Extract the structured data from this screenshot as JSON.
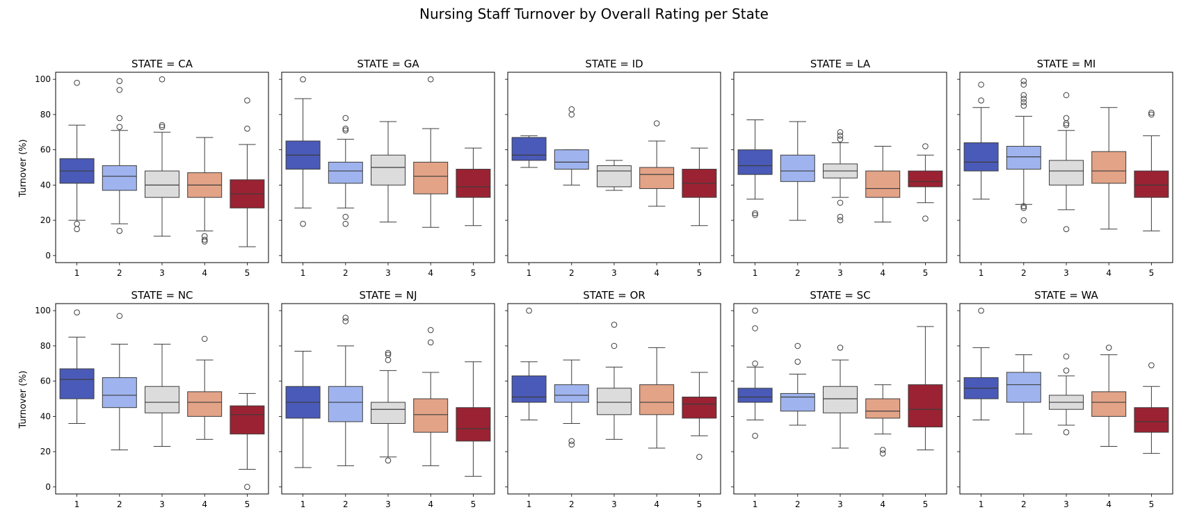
{
  "title": "Nursing Staff Turnover by Overall Rating per State",
  "ylabel": "Turnover (%)",
  "colors": [
    "#4a5ab8",
    "#9fb4ef",
    "#dcdcdc",
    "#e3a387",
    "#9b2232"
  ],
  "chart_data": {
    "type": "box",
    "categories": [
      "1",
      "2",
      "3",
      "4",
      "5"
    ],
    "ylim": [
      -4,
      104
    ],
    "yticks": [
      0,
      20,
      40,
      60,
      80,
      100
    ],
    "grid": false,
    "panels": [
      {
        "title": "STATE = CA",
        "boxes": [
          {
            "whislo": 20,
            "q1": 41,
            "med": 48,
            "q3": 55,
            "whishi": 74,
            "fliers": [
              98,
              18,
              15
            ]
          },
          {
            "whislo": 18,
            "q1": 37,
            "med": 45,
            "q3": 51,
            "whishi": 71,
            "fliers": [
              99,
              94,
              78,
              73,
              14
            ]
          },
          {
            "whislo": 11,
            "q1": 33,
            "med": 40,
            "q3": 48,
            "whishi": 70,
            "fliers": [
              100,
              74,
              73
            ]
          },
          {
            "whislo": 14,
            "q1": 33,
            "med": 40,
            "q3": 47,
            "whishi": 67,
            "fliers": [
              11,
              9,
              8
            ]
          },
          {
            "whislo": 5,
            "q1": 27,
            "med": 35,
            "q3": 43,
            "whishi": 63,
            "fliers": [
              88,
              72
            ]
          }
        ]
      },
      {
        "title": "STATE = GA",
        "boxes": [
          {
            "whislo": 27,
            "q1": 49,
            "med": 57,
            "q3": 65,
            "whishi": 89,
            "fliers": [
              100,
              18
            ]
          },
          {
            "whislo": 27,
            "q1": 41,
            "med": 48,
            "q3": 53,
            "whishi": 66,
            "fliers": [
              78,
              72,
              71,
              22,
              18
            ]
          },
          {
            "whislo": 19,
            "q1": 40,
            "med": 50,
            "q3": 57,
            "whishi": 76,
            "fliers": []
          },
          {
            "whislo": 16,
            "q1": 35,
            "med": 45,
            "q3": 53,
            "whishi": 72,
            "fliers": [
              100
            ]
          },
          {
            "whislo": 17,
            "q1": 33,
            "med": 39,
            "q3": 49,
            "whishi": 61,
            "fliers": []
          }
        ]
      },
      {
        "title": "STATE = ID",
        "boxes": [
          {
            "whislo": 50,
            "q1": 54,
            "med": 57,
            "q3": 67,
            "whishi": 68,
            "fliers": []
          },
          {
            "whislo": 40,
            "q1": 49,
            "med": 53,
            "q3": 60,
            "whishi": 60,
            "fliers": [
              83,
              80
            ]
          },
          {
            "whislo": 37,
            "q1": 39,
            "med": 48,
            "q3": 51,
            "whishi": 54,
            "fliers": []
          },
          {
            "whislo": 28,
            "q1": 38,
            "med": 46,
            "q3": 50,
            "whishi": 65,
            "fliers": [
              75
            ]
          },
          {
            "whislo": 17,
            "q1": 33,
            "med": 41,
            "q3": 49,
            "whishi": 61,
            "fliers": []
          }
        ]
      },
      {
        "title": "STATE = LA",
        "boxes": [
          {
            "whislo": 32,
            "q1": 46,
            "med": 51,
            "q3": 60,
            "whishi": 77,
            "fliers": [
              24,
              23
            ]
          },
          {
            "whislo": 20,
            "q1": 42,
            "med": 48,
            "q3": 57,
            "whishi": 76,
            "fliers": []
          },
          {
            "whislo": 33,
            "q1": 44,
            "med": 48,
            "q3": 52,
            "whishi": 64,
            "fliers": [
              70,
              68,
              66,
              30,
              22,
              20
            ]
          },
          {
            "whislo": 19,
            "q1": 33,
            "med": 38,
            "q3": 48,
            "whishi": 62,
            "fliers": []
          },
          {
            "whislo": 30,
            "q1": 39,
            "med": 42,
            "q3": 48,
            "whishi": 57,
            "fliers": [
              62,
              21
            ]
          }
        ]
      },
      {
        "title": "STATE = MI",
        "boxes": [
          {
            "whislo": 32,
            "q1": 48,
            "med": 53,
            "q3": 64,
            "whishi": 84,
            "fliers": [
              97,
              88
            ]
          },
          {
            "whislo": 29,
            "q1": 49,
            "med": 56,
            "q3": 62,
            "whishi": 79,
            "fliers": [
              99,
              97,
              91,
              89,
              87,
              85,
              28,
              27,
              20
            ]
          },
          {
            "whislo": 26,
            "q1": 40,
            "med": 48,
            "q3": 54,
            "whishi": 71,
            "fliers": [
              91,
              78,
              75,
              74,
              15
            ]
          },
          {
            "whislo": 15,
            "q1": 41,
            "med": 48,
            "q3": 59,
            "whishi": 84,
            "fliers": []
          },
          {
            "whislo": 14,
            "q1": 33,
            "med": 40,
            "q3": 48,
            "whishi": 68,
            "fliers": [
              81,
              80
            ]
          }
        ]
      },
      {
        "title": "STATE = NC",
        "boxes": [
          {
            "whislo": 36,
            "q1": 50,
            "med": 61,
            "q3": 67,
            "whishi": 85,
            "fliers": [
              99
            ]
          },
          {
            "whislo": 21,
            "q1": 45,
            "med": 52,
            "q3": 62,
            "whishi": 81,
            "fliers": [
              97
            ]
          },
          {
            "whislo": 23,
            "q1": 42,
            "med": 48,
            "q3": 57,
            "whishi": 81,
            "fliers": []
          },
          {
            "whislo": 27,
            "q1": 40,
            "med": 48,
            "q3": 54,
            "whishi": 72,
            "fliers": [
              84
            ]
          },
          {
            "whislo": 10,
            "q1": 30,
            "med": 41,
            "q3": 46,
            "whishi": 53,
            "fliers": [
              0
            ]
          }
        ]
      },
      {
        "title": "STATE = NJ",
        "boxes": [
          {
            "whislo": 11,
            "q1": 39,
            "med": 48,
            "q3": 57,
            "whishi": 77,
            "fliers": []
          },
          {
            "whislo": 12,
            "q1": 37,
            "med": 48,
            "q3": 57,
            "whishi": 80,
            "fliers": [
              96,
              94
            ]
          },
          {
            "whislo": 17,
            "q1": 36,
            "med": 44,
            "q3": 48,
            "whishi": 66,
            "fliers": [
              76,
              75,
              72,
              15
            ]
          },
          {
            "whislo": 12,
            "q1": 31,
            "med": 41,
            "q3": 50,
            "whishi": 65,
            "fliers": [
              89,
              82
            ]
          },
          {
            "whislo": 6,
            "q1": 26,
            "med": 33,
            "q3": 45,
            "whishi": 71,
            "fliers": []
          }
        ]
      },
      {
        "title": "STATE = OR",
        "boxes": [
          {
            "whislo": 38,
            "q1": 48,
            "med": 51,
            "q3": 63,
            "whishi": 71,
            "fliers": [
              100
            ]
          },
          {
            "whislo": 36,
            "q1": 48,
            "med": 52,
            "q3": 58,
            "whishi": 72,
            "fliers": [
              26,
              24
            ]
          },
          {
            "whislo": 27,
            "q1": 41,
            "med": 48,
            "q3": 56,
            "whishi": 68,
            "fliers": [
              92,
              80
            ]
          },
          {
            "whislo": 22,
            "q1": 41,
            "med": 48,
            "q3": 58,
            "whishi": 79,
            "fliers": []
          },
          {
            "whislo": 29,
            "q1": 39,
            "med": 47,
            "q3": 51,
            "whishi": 65,
            "fliers": [
              17
            ]
          }
        ]
      },
      {
        "title": "STATE = SC",
        "boxes": [
          {
            "whislo": 38,
            "q1": 48,
            "med": 51,
            "q3": 56,
            "whishi": 68,
            "fliers": [
              100,
              90,
              70,
              29
            ]
          },
          {
            "whislo": 35,
            "q1": 43,
            "med": 51,
            "q3": 53,
            "whishi": 64,
            "fliers": [
              80,
              71
            ]
          },
          {
            "whislo": 22,
            "q1": 42,
            "med": 50,
            "q3": 57,
            "whishi": 72,
            "fliers": [
              79
            ]
          },
          {
            "whislo": 30,
            "q1": 39,
            "med": 43,
            "q3": 50,
            "whishi": 58,
            "fliers": [
              21,
              19
            ]
          },
          {
            "whislo": 21,
            "q1": 34,
            "med": 44,
            "q3": 58,
            "whishi": 91,
            "fliers": []
          }
        ]
      },
      {
        "title": "STATE = WA",
        "boxes": [
          {
            "whislo": 38,
            "q1": 50,
            "med": 56,
            "q3": 62,
            "whishi": 79,
            "fliers": [
              100
            ]
          },
          {
            "whislo": 30,
            "q1": 48,
            "med": 58,
            "q3": 65,
            "whishi": 75,
            "fliers": []
          },
          {
            "whislo": 35,
            "q1": 44,
            "med": 48,
            "q3": 52,
            "whishi": 63,
            "fliers": [
              74,
              66,
              31
            ]
          },
          {
            "whislo": 23,
            "q1": 40,
            "med": 48,
            "q3": 54,
            "whishi": 75,
            "fliers": [
              79
            ]
          },
          {
            "whislo": 19,
            "q1": 31,
            "med": 37,
            "q3": 45,
            "whishi": 57,
            "fliers": [
              69
            ]
          }
        ]
      }
    ]
  }
}
